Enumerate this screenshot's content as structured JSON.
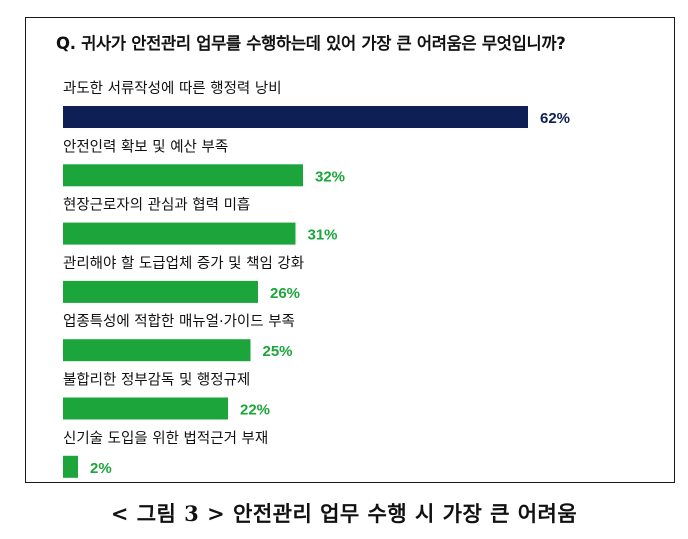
{
  "question": "Q. 귀사가 안전관리 업무를 수행하는데 있어 가장 큰 어려움은 무엇입니까?",
  "caption": "< 그림 3 > 안전관리 업무 수행 시 가장 큰 어려움",
  "colors": {
    "highlight_bar": "#0d1f54",
    "highlight_label": "#0d1f54",
    "bar": "#1ba53a",
    "label": "#1ba53a"
  },
  "chart_data": {
    "type": "bar",
    "orientation": "horizontal",
    "unit": "%",
    "categories": [
      "과도한 서류작성에 따른 행정력 낭비",
      "안전인력 확보 및 예산 부족",
      "현장근로자의 관심과 협력 미흡",
      "관리해야 할 도급업체 증가 및 책임 강화",
      "업종특성에 적합한 매뉴얼·가이드 부족",
      "불합리한 정부감독 및 행정규제",
      "신기술 도입을 위한 법적근거 부재"
    ],
    "values": [
      62,
      32,
      31,
      26,
      25,
      22,
      2
    ],
    "value_labels": [
      "62%",
      "32%",
      "31%",
      "26%",
      "25%",
      "22%",
      "2%"
    ],
    "highlight_index": 0,
    "xlim": [
      0,
      62
    ],
    "grid": false,
    "legend": "none"
  }
}
